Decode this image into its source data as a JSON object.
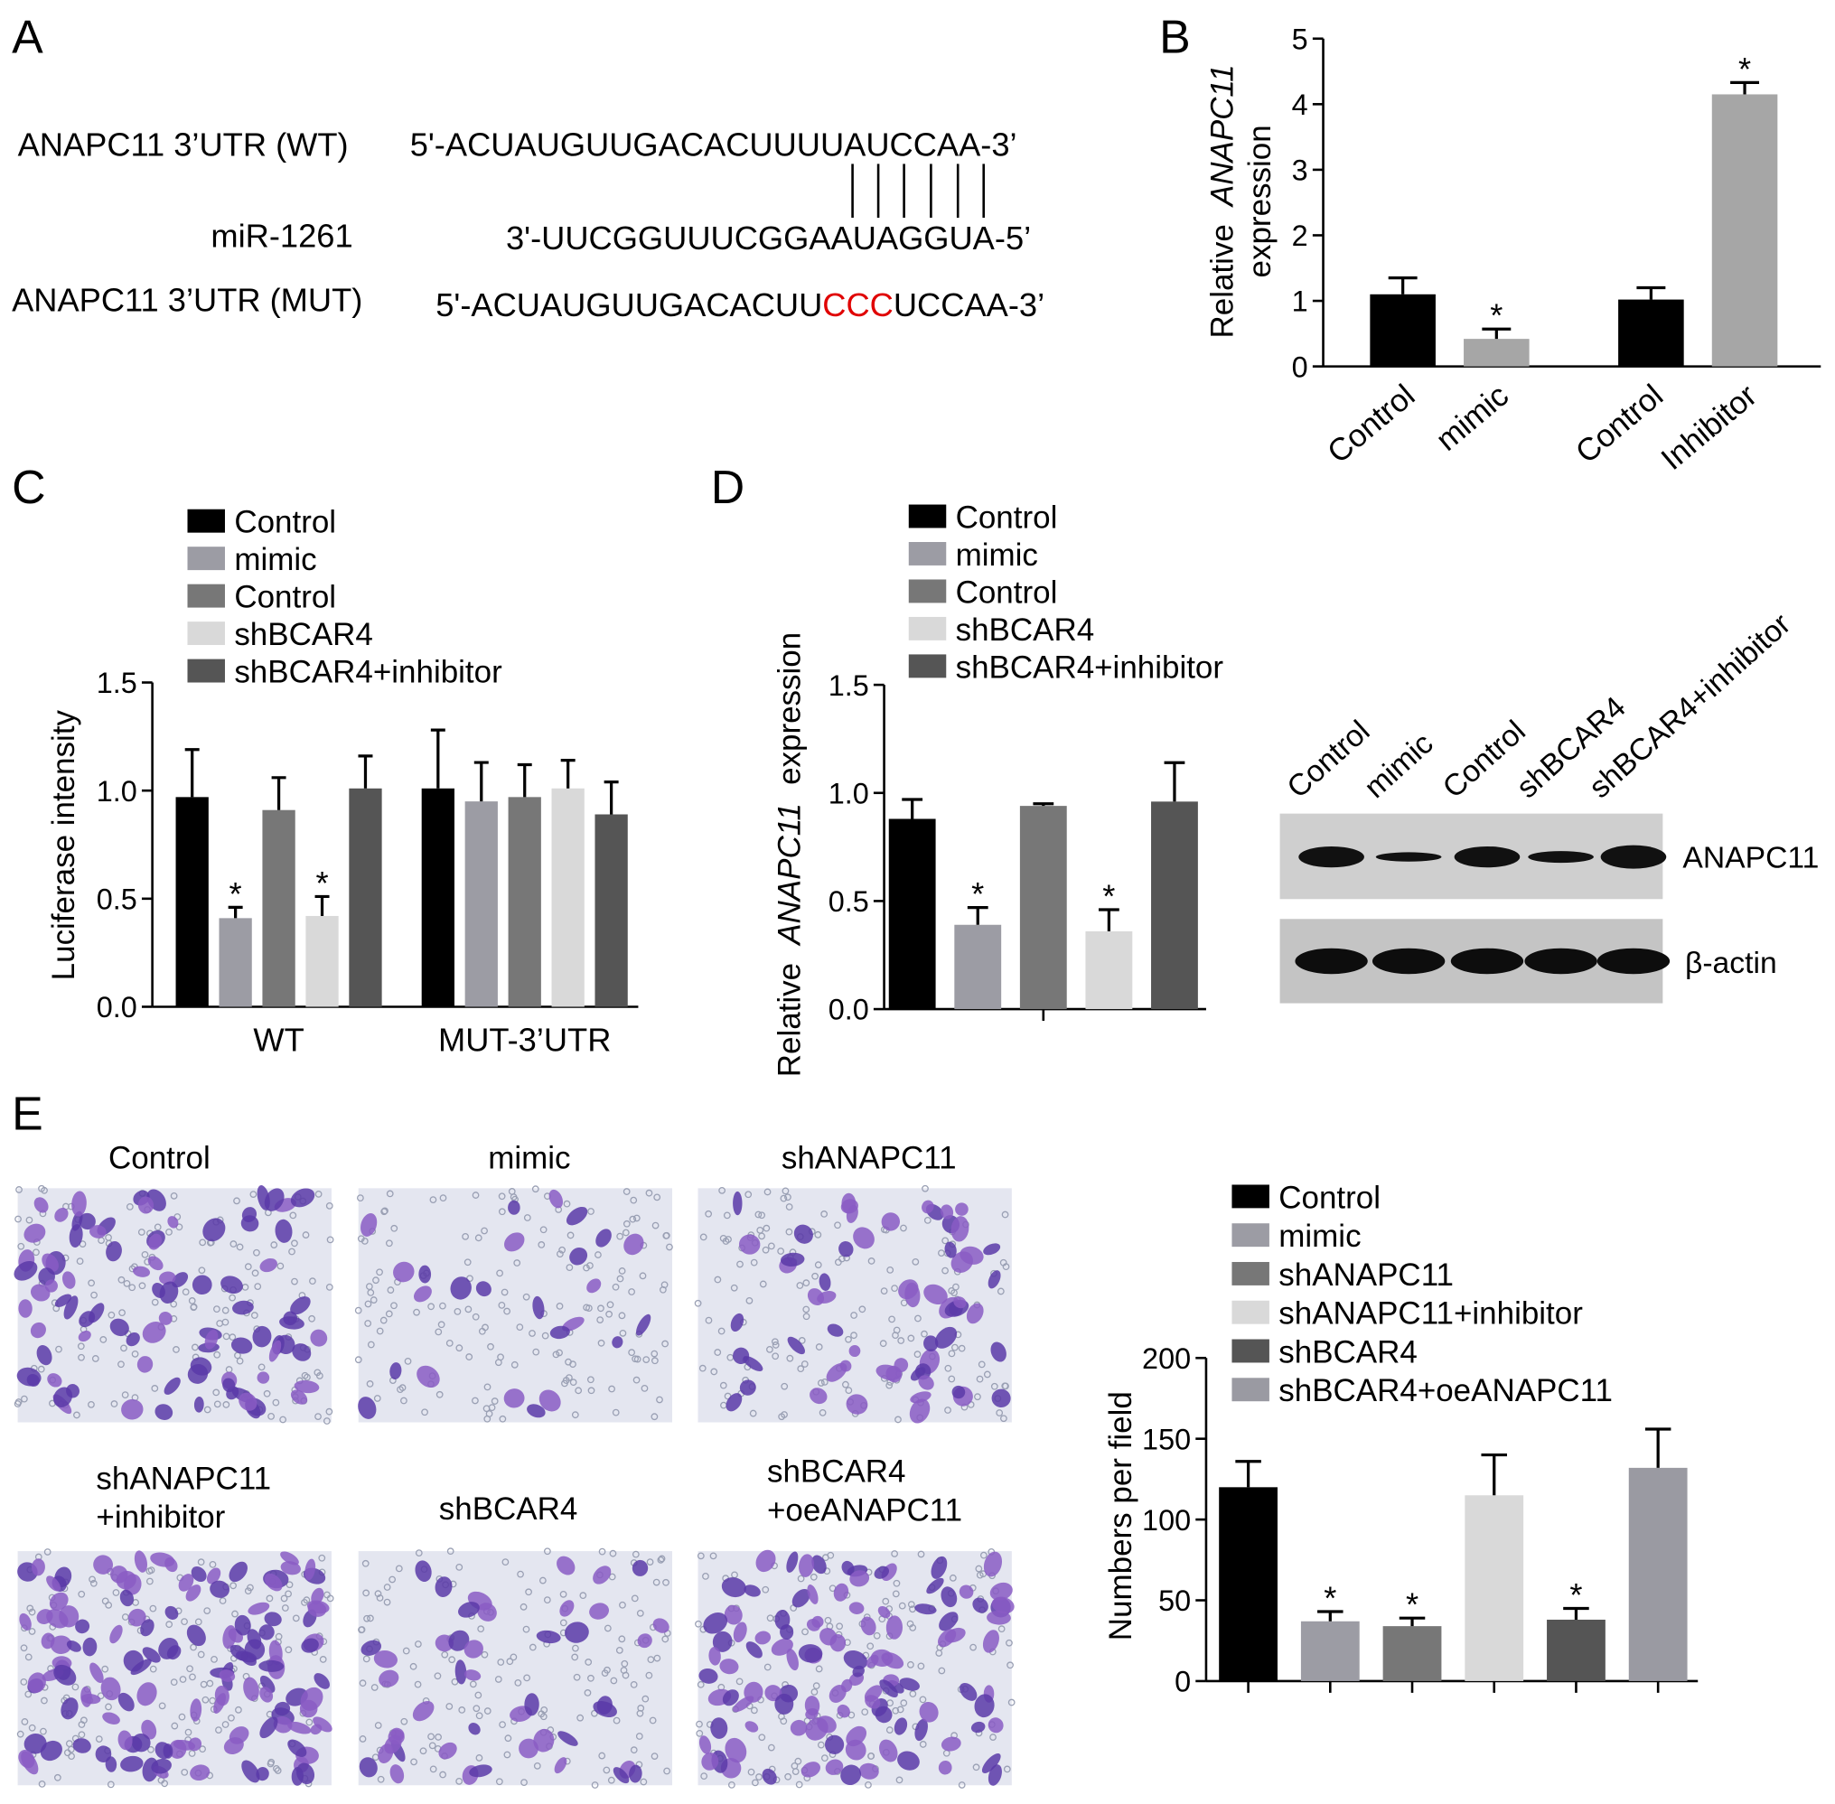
{
  "panel_labels": [
    "A",
    "B",
    "C",
    "D",
    "E"
  ],
  "sequences": {
    "wt_label": "ANAPC11 3’UTR (WT)",
    "wt": "5'-ACUAUGUUGACACUUUUAUCCAA-3’",
    "mir_label": "miR-1261",
    "mir": "3'-UUCGGUUUCGGAAUAGGUA-5’",
    "mut_label": "ANAPC11 3’UTR (MUT)",
    "mut": [
      "5'-ACUAUGUUGACACUU",
      "CCC",
      "UCCAA-3’"
    ]
  },
  "chart_data": [
    {
      "type": "bar",
      "y_label": [
        "Relative",
        "ANAPC11",
        "expression"
      ],
      "categories": [
        "Control",
        "mimic",
        "Control",
        "Inhibitor"
      ],
      "values": [
        1.1,
        0.42,
        1.02,
        4.15
      ],
      "errors": [
        0.25,
        0.15,
        0.18,
        0.18
      ],
      "significance": [
        null,
        "*",
        null,
        "*"
      ],
      "colors": [
        "#000000",
        "#a6a6a6",
        "#000000",
        "#a6a6a6"
      ],
      "ylim": [
        0,
        5
      ],
      "yticks": [
        0,
        1,
        2,
        3,
        4,
        5
      ]
    },
    {
      "type": "grouped_bar",
      "y_label": [
        "Luciferase intensity"
      ],
      "categories": [
        "WT",
        "MUT-3’UTR"
      ],
      "x_tick_marks": "none",
      "series": [
        {
          "name": "Control",
          "color": "#000000",
          "values": [
            0.97,
            1.01
          ],
          "errors": [
            0.22,
            0.27
          ],
          "significance": [
            null,
            null
          ]
        },
        {
          "name": "mimic",
          "color": "#9c9ca4",
          "values": [
            0.41,
            0.95
          ],
          "errors": [
            0.05,
            0.18
          ],
          "significance": [
            "*",
            null
          ]
        },
        {
          "name": "Control",
          "color": "#777777",
          "values": [
            0.91,
            0.97
          ],
          "errors": [
            0.15,
            0.15
          ],
          "significance": [
            null,
            null
          ]
        },
        {
          "name": "shBCAR4",
          "color": "#d9d9d9",
          "values": [
            0.42,
            1.01
          ],
          "errors": [
            0.09,
            0.13
          ],
          "significance": [
            "*",
            null
          ]
        },
        {
          "name": "shBCAR4+inhibitor",
          "color": "#555555",
          "values": [
            1.01,
            0.89
          ],
          "errors": [
            0.15,
            0.15
          ],
          "significance": [
            null,
            null
          ]
        }
      ],
      "ylim": [
        0,
        1.5
      ],
      "yticks": [
        {
          "value": 0,
          "label": "0.0"
        },
        0.5,
        {
          "value": 1,
          "label": "1.0"
        },
        1.5
      ]
    },
    {
      "type": "grouped_bar",
      "y_label": [
        "Relative",
        "ANAPC11",
        "expression"
      ],
      "categories": [
        null
      ],
      "x_tick_marks": "group",
      "series": [
        {
          "name": "Control",
          "color": "#000000",
          "values": [
            0.88
          ],
          "errors": [
            0.09
          ],
          "significance": [
            null
          ]
        },
        {
          "name": "mimic",
          "color": "#9c9ca4",
          "values": [
            0.39
          ],
          "errors": [
            0.08
          ],
          "significance": [
            "*"
          ]
        },
        {
          "name": "Control",
          "color": "#777777",
          "values": [
            0.94
          ],
          "errors": [
            0.01
          ],
          "significance": [
            null
          ]
        },
        {
          "name": "shBCAR4",
          "color": "#d9d9d9",
          "values": [
            0.36
          ],
          "errors": [
            0.1
          ],
          "significance": [
            "*"
          ]
        },
        {
          "name": "shBCAR4+inhibitor",
          "color": "#555555",
          "values": [
            0.96
          ],
          "errors": [
            0.18
          ],
          "significance": [
            null
          ]
        }
      ],
      "ylim": [
        0,
        1.5
      ],
      "yticks": [
        {
          "value": 0,
          "label": "0.0"
        },
        0.5,
        {
          "value": 1,
          "label": "1.0"
        },
        1.5
      ]
    },
    {
      "type": "grouped_bar",
      "y_label": [
        "Numbers per field"
      ],
      "categories": [
        null
      ],
      "x_tick_marks": "bar",
      "series": [
        {
          "name": "Control",
          "color": "#000000",
          "values": [
            120
          ],
          "errors": [
            16
          ],
          "significance": [
            null
          ]
        },
        {
          "name": "mimic",
          "color": "#9c9ca4",
          "values": [
            37
          ],
          "errors": [
            6
          ],
          "significance": [
            "*"
          ]
        },
        {
          "name": "shANAPC11",
          "color": "#777777",
          "values": [
            34
          ],
          "errors": [
            5
          ],
          "significance": [
            "*"
          ]
        },
        {
          "name": "shANAPC11+inhibitor",
          "color": "#d9d9d9",
          "values": [
            115
          ],
          "errors": [
            25
          ],
          "significance": [
            null
          ]
        },
        {
          "name": "shBCAR4",
          "color": "#555555",
          "values": [
            38
          ],
          "errors": [
            7
          ],
          "significance": [
            "*"
          ]
        },
        {
          "name": "shBCAR4+oeANAPC11",
          "color": "#9a9aa2",
          "values": [
            132
          ],
          "errors": [
            24
          ],
          "significance": [
            null
          ]
        }
      ],
      "ylim": [
        0,
        200
      ],
      "yticks": [
        0,
        50,
        100,
        150,
        200
      ]
    }
  ],
  "blot": {
    "lanes": [
      "Control",
      "mimic",
      "Control",
      "shBCAR4",
      "shBCAR4+inhibitor"
    ],
    "bands": [
      "ANAPC11",
      "β-actin"
    ]
  },
  "micrographs": [
    [
      "Control"
    ],
    [
      "mimic"
    ],
    [
      "shANAPC11"
    ],
    [
      "shANAPC11",
      "+inhibitor"
    ],
    [
      "shBCAR4"
    ],
    [
      "shBCAR4",
      "+oeANAPC11"
    ]
  ]
}
